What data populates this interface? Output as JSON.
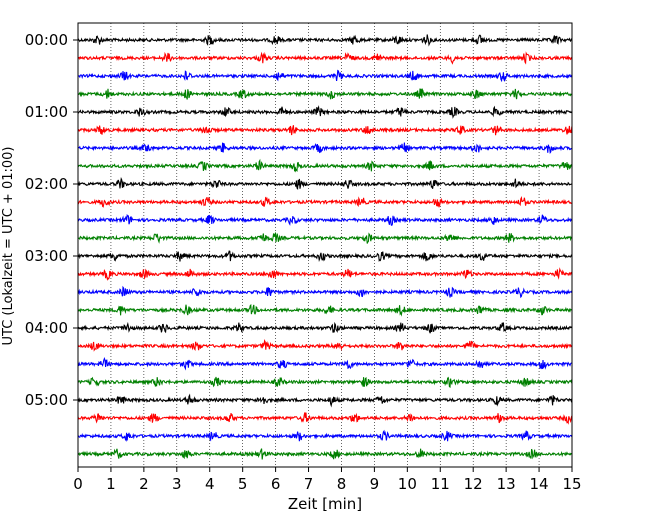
{
  "chart_data": {
    "type": "line",
    "title": "",
    "xlabel": "Zeit  [min]",
    "ylabel": "UTC (Lokalzeit = UTC + 01:00)",
    "xlim": [
      0,
      15
    ],
    "x_ticks": [
      0,
      1,
      2,
      3,
      4,
      5,
      6,
      7,
      8,
      9,
      10,
      11,
      12,
      13,
      14,
      15
    ],
    "x_tick_labels": [
      "0",
      "1",
      "2",
      "3",
      "4",
      "5",
      "6",
      "7",
      "8",
      "9",
      "10",
      "11",
      "12",
      "13",
      "14",
      "15"
    ],
    "y_ticks": [
      {
        "trace_index": 0,
        "label": "00:00"
      },
      {
        "trace_index": 4,
        "label": "01:00"
      },
      {
        "trace_index": 8,
        "label": "02:00"
      },
      {
        "trace_index": 12,
        "label": "03:00"
      },
      {
        "trace_index": 16,
        "label": "04:00"
      },
      {
        "trace_index": 20,
        "label": "05:00"
      }
    ],
    "trace_interval_minutes": 15,
    "trace_count": 24,
    "color_cycle": [
      "#000000",
      "#ff0000",
      "#0000ff",
      "#008000"
    ],
    "grid": {
      "x": true,
      "style": "dotted"
    },
    "bursts": [
      [
        0.6,
        4.0,
        6.0,
        8.4,
        9.7,
        10.6,
        12.2,
        14.5
      ],
      [
        2.7,
        5.6,
        8.2,
        9.1,
        11.4,
        13.6
      ],
      [
        1.4,
        3.3,
        6.1,
        7.9,
        10.2,
        12.9
      ],
      [
        0.9,
        3.3,
        5.0,
        7.7,
        10.4,
        12.1,
        13.3
      ],
      [
        1.9,
        4.5,
        6.2,
        7.3,
        9.8,
        11.4,
        12.7
      ],
      [
        0.7,
        3.9,
        6.5,
        8.8,
        11.6,
        12.7,
        14.9
      ],
      [
        2.1,
        4.4,
        7.3,
        9.9,
        12.1,
        14.3
      ],
      [
        3.8,
        5.5,
        6.6,
        8.9,
        10.7,
        14.8
      ],
      [
        1.3,
        4.2,
        6.7,
        8.2,
        10.8,
        13.3
      ],
      [
        0.8,
        3.9,
        5.7,
        8.6,
        10.9,
        13.5
      ],
      [
        1.5,
        4.0,
        6.5,
        9.5,
        12.6,
        14.1
      ],
      [
        2.4,
        5.6,
        6.0,
        8.8,
        11.3,
        13.1
      ],
      [
        1.1,
        3.1,
        4.6,
        7.4,
        9.2,
        10.6,
        12.3
      ],
      [
        0.9,
        2.0,
        3.4,
        5.9,
        8.2,
        11.8,
        14.6
      ],
      [
        1.4,
        3.6,
        5.8,
        8.6,
        11.3,
        13.4
      ],
      [
        1.3,
        3.3,
        5.3,
        7.6,
        9.8,
        12.2,
        14.1
      ],
      [
        1.5,
        2.6,
        4.9,
        7.8,
        9.8,
        10.7,
        12.9
      ],
      [
        0.5,
        3.6,
        5.7,
        7.9,
        9.8,
        11.9
      ],
      [
        0.8,
        3.3,
        6.2,
        8.2,
        10.1,
        12.2,
        14.1
      ],
      [
        0.5,
        2.4,
        4.2,
        6.1,
        8.7,
        11.3,
        13.6
      ],
      [
        1.3,
        3.4,
        5.6,
        7.7,
        9.2,
        12.7,
        14.4
      ],
      [
        0.6,
        2.3,
        4.6,
        6.9,
        8.4,
        10.1,
        12.8,
        14.9
      ],
      [
        1.5,
        4.1,
        6.7,
        9.3,
        11.2,
        13.6
      ],
      [
        1.2,
        3.3,
        5.6,
        7.8,
        10.4,
        13.8
      ]
    ]
  }
}
